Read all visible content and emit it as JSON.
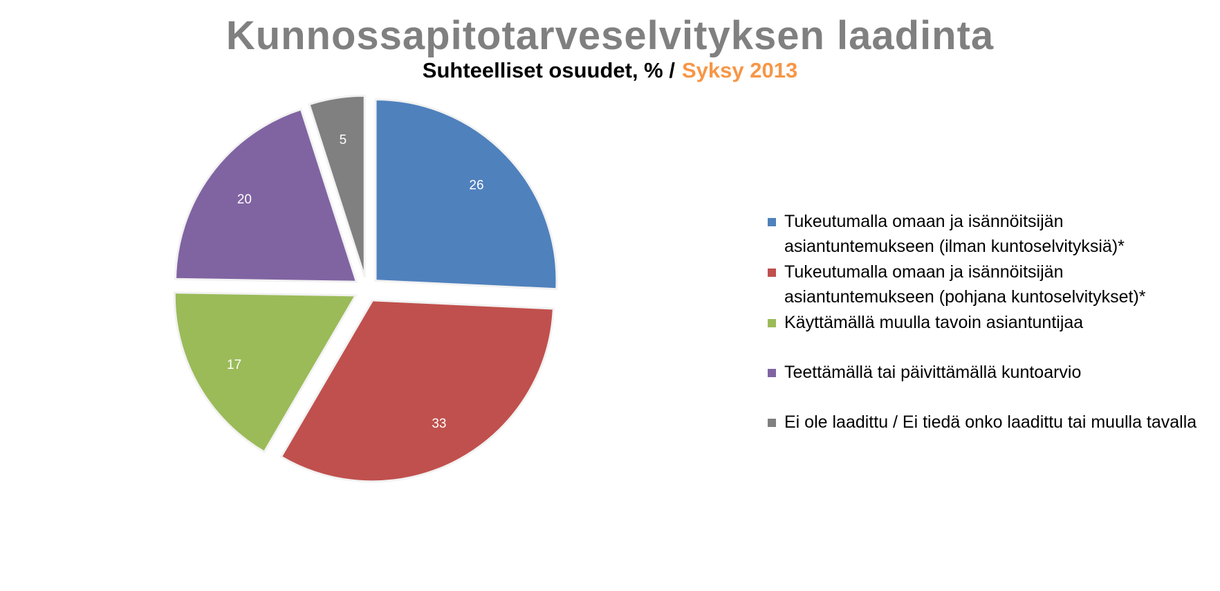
{
  "title": "Kunnossapitotarveselvityksen laadinta",
  "subtitle": {
    "main": "Suhteelliset osuudet, % /",
    "accent": "Syksy 2013"
  },
  "chart_data": {
    "type": "pie",
    "series": [
      {
        "name": "Tukeutumalla omaan ja isännöitsijän asiantuntemukseen (ilman kuntoselvityksiä)*",
        "value": 26,
        "color": "#4f81bd"
      },
      {
        "name": "Tukeutumalla omaan ja isännöitsijän asiantuntemukseen (pohjana kuntoselvitykset)*",
        "value": 33,
        "color": "#c0504d"
      },
      {
        "name": "Käyttämällä muulla tavoin asiantuntijaa",
        "value": 17,
        "color": "#9bbb59"
      },
      {
        "name": "Teettämällä tai päivittämällä kuntoarvio",
        "value": 20,
        "color": "#8064a2"
      },
      {
        "name": "Ei ole laadittu / Ei tiedä onko laadittu tai muulla tavalla",
        "value": 5,
        "color": "#808080"
      }
    ],
    "legend_position": "right"
  }
}
